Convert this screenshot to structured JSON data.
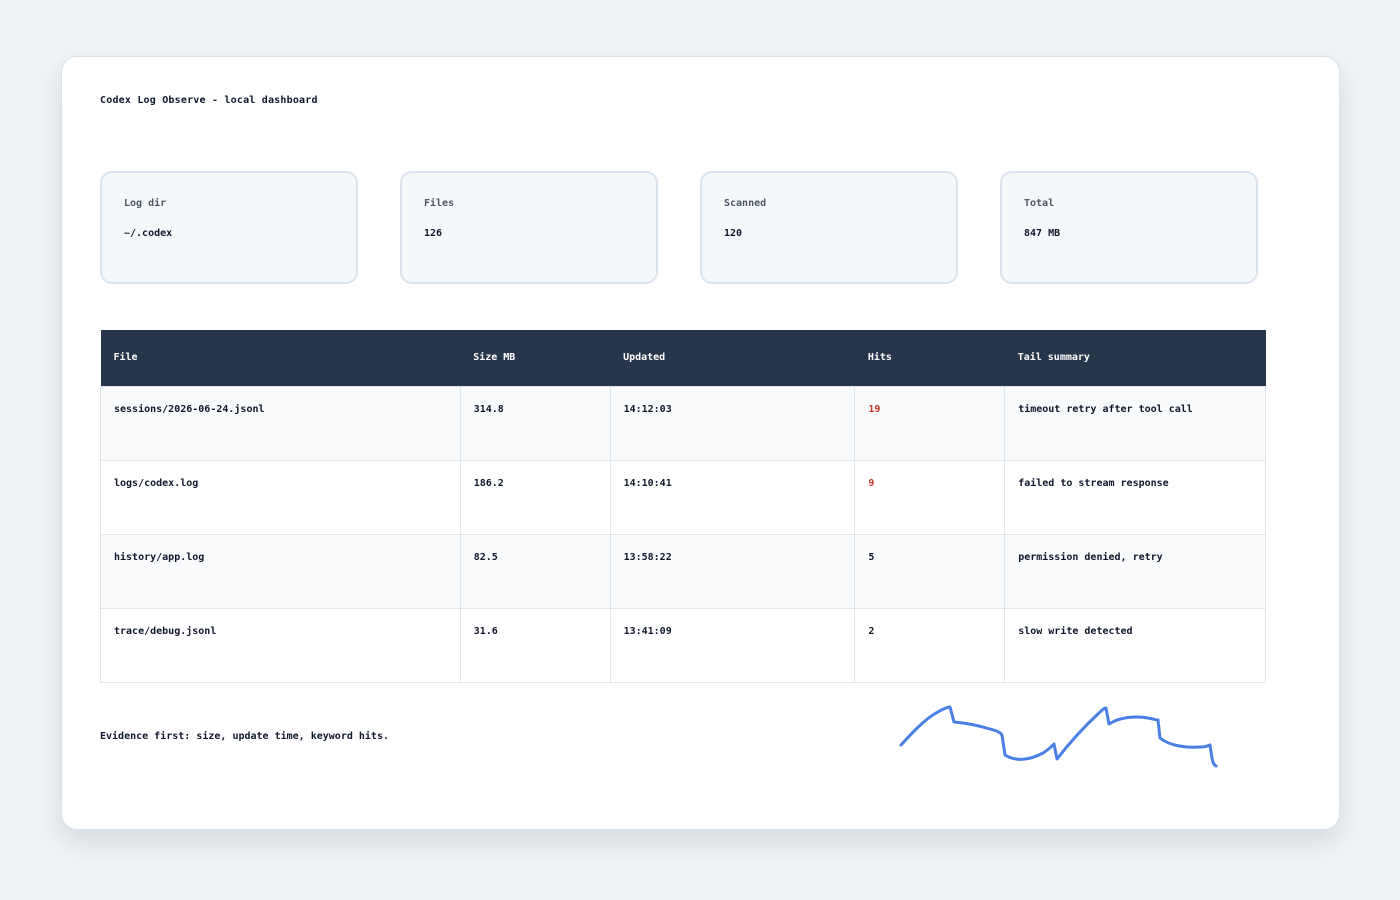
{
  "title": "Codex Log Observe - local dashboard",
  "cards": [
    {
      "label": "Log dir",
      "value": "~/.codex"
    },
    {
      "label": "Files",
      "value": "126"
    },
    {
      "label": "Scanned",
      "value": "120"
    },
    {
      "label": "Total",
      "value": "847 MB"
    }
  ],
  "table": {
    "headers": [
      "File",
      "Size MB",
      "Updated",
      "Hits",
      "Tail summary"
    ],
    "rows": [
      {
        "file": "sessions/2026-06-24.jsonl",
        "size": "314.8",
        "updated": "14:12:03",
        "hits": "19",
        "summary": "timeout retry after tool call"
      },
      {
        "file": "logs/codex.log",
        "size": "186.2",
        "updated": "14:10:41",
        "hits": "9",
        "summary": "failed to stream response"
      },
      {
        "file": "history/app.log",
        "size": "82.5",
        "updated": "13:58:22",
        "hits": "5",
        "summary": "permission denied, retry"
      },
      {
        "file": "trace/debug.jsonl",
        "size": "31.6",
        "updated": "13:41:09",
        "hits": "2",
        "summary": "slow write detected"
      }
    ]
  },
  "footer": "Evidence first: size, update time, keyword hits.",
  "colors": {
    "accent": "#4a7fe6",
    "header_bg": "#27364b",
    "hit_alert": "#c0392b"
  }
}
